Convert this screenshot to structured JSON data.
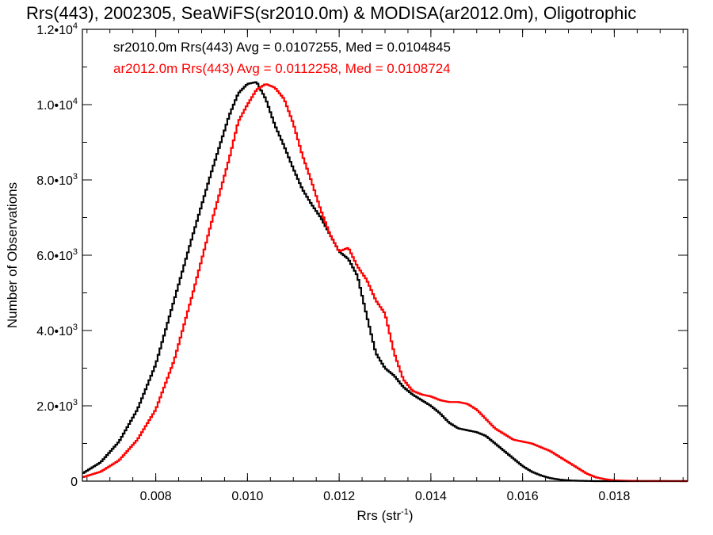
{
  "chart_data": {
    "type": "line",
    "title": "Rrs(443), 2002305, SeaWiFS(sr2010.0m) & MODISA(ar2012.0m), Oligotrophic",
    "xlabel": "Rrs (str",
    "xlabel_sup": "-1",
    "xlabel_end": ")",
    "ylabel": "Number of Observations",
    "xlim": [
      0.0064,
      0.0196
    ],
    "ylim": [
      0,
      12000
    ],
    "grid": false,
    "legend_position": "top-left",
    "x_ticks": [
      {
        "value": 0.008,
        "label": "0.008"
      },
      {
        "value": 0.01,
        "label": "0.010"
      },
      {
        "value": 0.012,
        "label": "0.012"
      },
      {
        "value": 0.014,
        "label": "0.014"
      },
      {
        "value": 0.016,
        "label": "0.016"
      },
      {
        "value": 0.018,
        "label": "0.018"
      }
    ],
    "y_ticks": [
      {
        "value": 0,
        "mant": "0",
        "exp": ""
      },
      {
        "value": 2000,
        "mant": "2.0•10",
        "exp": "3"
      },
      {
        "value": 4000,
        "mant": "4.0•10",
        "exp": "3"
      },
      {
        "value": 6000,
        "mant": "6.0•10",
        "exp": "3"
      },
      {
        "value": 8000,
        "mant": "8.0•10",
        "exp": "3"
      },
      {
        "value": 10000,
        "mant": "1.0•10",
        "exp": "4"
      },
      {
        "value": 12000,
        "mant": "1.2•10",
        "exp": "4"
      }
    ],
    "series": [
      {
        "legend": "sr2010.0m Rrs(443) Avg = 0.0107255, Med = 0.0104845",
        "color": "#000000",
        "points": [
          [
            0.0064,
            200
          ],
          [
            0.0068,
            500
          ],
          [
            0.0072,
            1050
          ],
          [
            0.0076,
            1900
          ],
          [
            0.008,
            3100
          ],
          [
            0.0084,
            4800
          ],
          [
            0.0088,
            6500
          ],
          [
            0.0092,
            8150
          ],
          [
            0.0096,
            9700
          ],
          [
            0.0098,
            10300
          ],
          [
            0.01,
            10550
          ],
          [
            0.0102,
            10600
          ],
          [
            0.0104,
            10150
          ],
          [
            0.0106,
            9450
          ],
          [
            0.0108,
            8900
          ],
          [
            0.011,
            8300
          ],
          [
            0.0112,
            7750
          ],
          [
            0.0114,
            7350
          ],
          [
            0.0116,
            7000
          ],
          [
            0.0118,
            6550
          ],
          [
            0.012,
            6100
          ],
          [
            0.0122,
            5900
          ],
          [
            0.0124,
            5450
          ],
          [
            0.0126,
            4400
          ],
          [
            0.0128,
            3400
          ],
          [
            0.013,
            3000
          ],
          [
            0.0132,
            2800
          ],
          [
            0.0134,
            2500
          ],
          [
            0.0136,
            2300
          ],
          [
            0.0138,
            2150
          ],
          [
            0.014,
            2000
          ],
          [
            0.0142,
            1800
          ],
          [
            0.0144,
            1550
          ],
          [
            0.0146,
            1400
          ],
          [
            0.0148,
            1350
          ],
          [
            0.015,
            1300
          ],
          [
            0.0152,
            1200
          ],
          [
            0.0154,
            1000
          ],
          [
            0.0156,
            800
          ],
          [
            0.0158,
            600
          ],
          [
            0.016,
            400
          ],
          [
            0.0162,
            250
          ],
          [
            0.0164,
            150
          ],
          [
            0.0166,
            80
          ],
          [
            0.0168,
            40
          ],
          [
            0.017,
            20
          ],
          [
            0.0172,
            10
          ],
          [
            0.0176,
            0
          ],
          [
            0.0196,
            0
          ]
        ]
      },
      {
        "legend": "ar2012.0m Rrs(443) Avg = 0.0112258, Med = 0.0108724",
        "color": "#ff0000",
        "points": [
          [
            0.0064,
            100
          ],
          [
            0.0068,
            250
          ],
          [
            0.0072,
            550
          ],
          [
            0.0076,
            1100
          ],
          [
            0.008,
            1900
          ],
          [
            0.0084,
            3200
          ],
          [
            0.0088,
            4950
          ],
          [
            0.0092,
            6800
          ],
          [
            0.0096,
            8550
          ],
          [
            0.0098,
            9550
          ],
          [
            0.01,
            10000
          ],
          [
            0.0102,
            10400
          ],
          [
            0.0104,
            10550
          ],
          [
            0.0106,
            10450
          ],
          [
            0.0108,
            10150
          ],
          [
            0.011,
            9500
          ],
          [
            0.0112,
            8650
          ],
          [
            0.0114,
            7950
          ],
          [
            0.0116,
            7200
          ],
          [
            0.0118,
            6550
          ],
          [
            0.012,
            6100
          ],
          [
            0.0122,
            6200
          ],
          [
            0.0124,
            5700
          ],
          [
            0.0126,
            5350
          ],
          [
            0.0128,
            4800
          ],
          [
            0.013,
            4450
          ],
          [
            0.0132,
            3400
          ],
          [
            0.0134,
            2700
          ],
          [
            0.0136,
            2400
          ],
          [
            0.0138,
            2300
          ],
          [
            0.014,
            2250
          ],
          [
            0.0142,
            2150
          ],
          [
            0.0144,
            2100
          ],
          [
            0.0146,
            2100
          ],
          [
            0.0148,
            2050
          ],
          [
            0.015,
            1900
          ],
          [
            0.0152,
            1650
          ],
          [
            0.0154,
            1400
          ],
          [
            0.0156,
            1250
          ],
          [
            0.0158,
            1100
          ],
          [
            0.016,
            1050
          ],
          [
            0.0162,
            1000
          ],
          [
            0.0164,
            900
          ],
          [
            0.0166,
            800
          ],
          [
            0.0168,
            650
          ],
          [
            0.017,
            500
          ],
          [
            0.0172,
            350
          ],
          [
            0.0174,
            200
          ],
          [
            0.0176,
            100
          ],
          [
            0.0178,
            50
          ],
          [
            0.018,
            20
          ],
          [
            0.0184,
            5
          ],
          [
            0.0196,
            0
          ]
        ]
      }
    ]
  }
}
